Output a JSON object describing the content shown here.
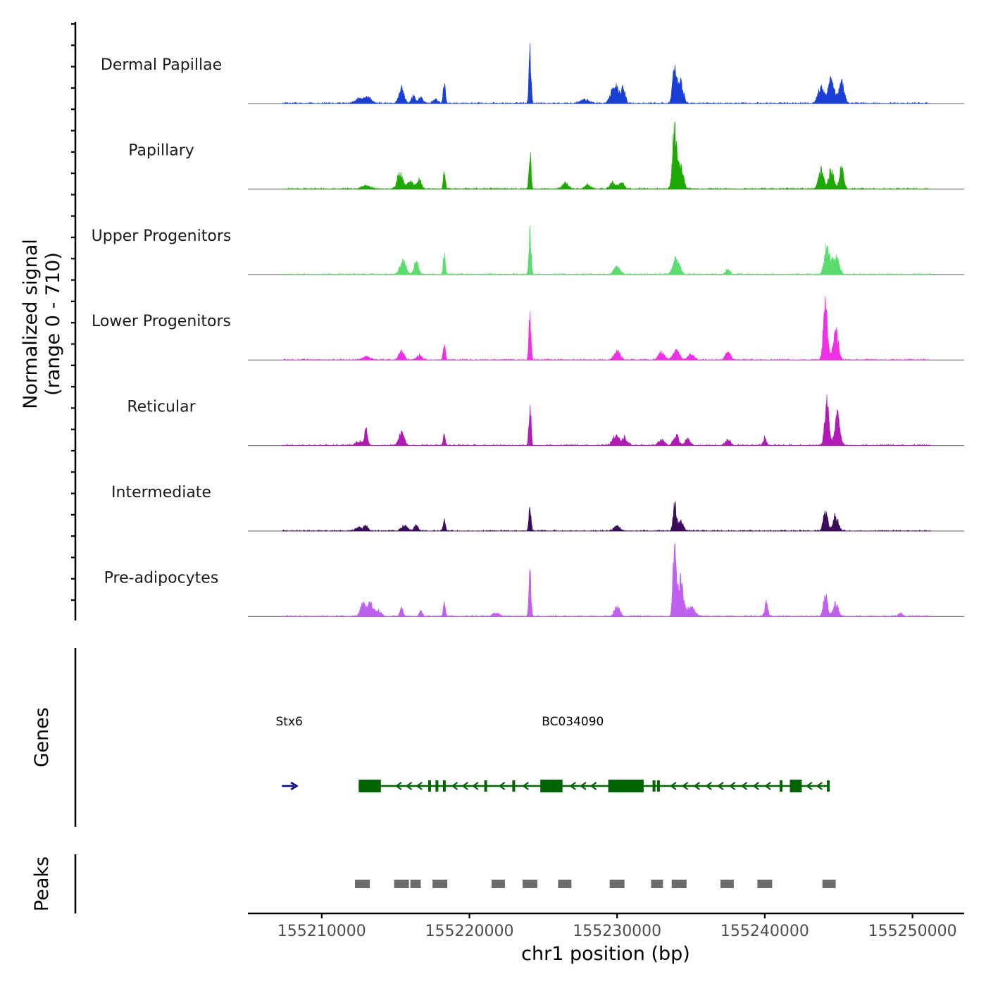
{
  "chart_data": {
    "type": "area",
    "title": "",
    "xlabel": "chr1 position (bp)",
    "ylabel": "Normalized signal",
    "ylabel_range": "(range 0 - 710)",
    "ylim": [
      0,
      710
    ],
    "xlim": [
      155205000,
      155253500
    ],
    "x_ticks": [
      155210000,
      155220000,
      155230000,
      155240000,
      155250000
    ],
    "x_tick_labels": [
      "155210000",
      "155220000",
      "155230000",
      "155240000",
      "155250000"
    ],
    "series": [
      {
        "name": "Dermal Papillae",
        "color": "#1a3fd6",
        "peaks": [
          [
            155212500,
            55,
            8
          ],
          [
            155213100,
            75,
            8
          ],
          [
            155215400,
            200,
            5
          ],
          [
            155216200,
            100,
            4
          ],
          [
            155216700,
            80,
            4
          ],
          [
            155217700,
            55,
            5
          ],
          [
            155218300,
            280,
            2
          ],
          [
            155224100,
            710,
            2
          ],
          [
            155227800,
            50,
            8
          ],
          [
            155229700,
            160,
            6
          ],
          [
            155230000,
            170,
            4
          ],
          [
            155230400,
            220,
            4
          ],
          [
            155233900,
            450,
            4
          ],
          [
            155234300,
            300,
            5
          ],
          [
            155243800,
            200,
            6
          ],
          [
            155244500,
            300,
            6
          ],
          [
            155245200,
            280,
            5
          ]
        ]
      },
      {
        "name": "Papillary",
        "color": "#1daa00",
        "peaks": [
          [
            155213000,
            45,
            8
          ],
          [
            155215300,
            230,
            5
          ],
          [
            155216000,
            100,
            6
          ],
          [
            155216600,
            120,
            4
          ],
          [
            155218300,
            230,
            2
          ],
          [
            155224100,
            470,
            2
          ],
          [
            155226500,
            70,
            6
          ],
          [
            155228000,
            50,
            6
          ],
          [
            155229700,
            90,
            5
          ],
          [
            155230300,
            90,
            5
          ],
          [
            155233900,
            780,
            4
          ],
          [
            155234300,
            300,
            5
          ],
          [
            155243800,
            250,
            5
          ],
          [
            155244500,
            250,
            5
          ],
          [
            155245200,
            280,
            4
          ]
        ]
      },
      {
        "name": "Upper Progenitors",
        "color": "#5adc6e",
        "peaks": [
          [
            155215500,
            170,
            6
          ],
          [
            155216400,
            190,
            4
          ],
          [
            155218300,
            270,
            2
          ],
          [
            155224100,
            620,
            2
          ],
          [
            155230000,
            110,
            6
          ],
          [
            155234000,
            210,
            6
          ],
          [
            155237500,
            60,
            4
          ],
          [
            155244200,
            370,
            5
          ],
          [
            155244800,
            250,
            6
          ]
        ]
      },
      {
        "name": "Lower Progenitors",
        "color": "#f030e6",
        "peaks": [
          [
            155213000,
            45,
            8
          ],
          [
            155215400,
            120,
            5
          ],
          [
            155216600,
            60,
            5
          ],
          [
            155218300,
            220,
            2
          ],
          [
            155224100,
            600,
            2
          ],
          [
            155230000,
            120,
            6
          ],
          [
            155233000,
            100,
            6
          ],
          [
            155234000,
            130,
            6
          ],
          [
            155235000,
            80,
            6
          ],
          [
            155237500,
            110,
            5
          ],
          [
            155244100,
            700,
            4
          ],
          [
            155244800,
            400,
            5
          ]
        ]
      },
      {
        "name": "Reticular",
        "color": "#b01ab5",
        "peaks": [
          [
            155212500,
            55,
            6
          ],
          [
            155213000,
            220,
            3
          ],
          [
            155215400,
            180,
            5
          ],
          [
            155218300,
            140,
            2
          ],
          [
            155224100,
            560,
            2
          ],
          [
            155229900,
            130,
            6
          ],
          [
            155230500,
            100,
            6
          ],
          [
            155233000,
            70,
            6
          ],
          [
            155234000,
            130,
            5
          ],
          [
            155234800,
            90,
            5
          ],
          [
            155237500,
            80,
            5
          ],
          [
            155240000,
            110,
            3
          ],
          [
            155244200,
            560,
            4
          ],
          [
            155244900,
            400,
            5
          ]
        ]
      },
      {
        "name": "Intermediate",
        "color": "#3a0c5a",
        "peaks": [
          [
            155212500,
            45,
            6
          ],
          [
            155213000,
            70,
            4
          ],
          [
            155215600,
            70,
            6
          ],
          [
            155216400,
            75,
            4
          ],
          [
            155218300,
            150,
            2
          ],
          [
            155224100,
            350,
            2
          ],
          [
            155230000,
            70,
            6
          ],
          [
            155233900,
            370,
            3
          ],
          [
            155234300,
            130,
            5
          ],
          [
            155244100,
            280,
            4
          ],
          [
            155244800,
            200,
            5
          ]
        ]
      },
      {
        "name": "Pre-adipocytes",
        "color": "#c060f0",
        "peaks": [
          [
            155212800,
            170,
            5
          ],
          [
            155213300,
            170,
            5
          ],
          [
            155213800,
            80,
            6
          ],
          [
            155215400,
            110,
            3
          ],
          [
            155216700,
            80,
            3
          ],
          [
            155218300,
            190,
            2
          ],
          [
            155221800,
            50,
            6
          ],
          [
            155224100,
            630,
            2
          ],
          [
            155230000,
            130,
            5
          ],
          [
            155233900,
            1050,
            3
          ],
          [
            155234300,
            500,
            5
          ],
          [
            155235000,
            120,
            8
          ],
          [
            155240100,
            190,
            3
          ],
          [
            155244100,
            280,
            4
          ],
          [
            155244800,
            170,
            5
          ],
          [
            155249200,
            40,
            4
          ]
        ]
      }
    ],
    "genes": {
      "title": "Genes",
      "labels": [
        {
          "name": "Stx6",
          "x": 155207800
        },
        {
          "name": "BC034090",
          "x": 155227000
        }
      ],
      "stx6_arrow": {
        "start": 155207300,
        "end": 155208300,
        "strand": "+",
        "color": "#00008b"
      },
      "bc034090": {
        "start": 155212500,
        "end": 155244300,
        "strand": "-",
        "color": "#006400",
        "exons": [
          [
            155212500,
            155214000
          ],
          [
            155224800,
            155226300
          ],
          [
            155229400,
            155231800
          ],
          [
            155241700,
            155242500
          ]
        ],
        "small_exons": [
          155217300,
          155217800,
          155218300,
          155221100,
          155223000,
          155232500,
          155232800,
          155241100,
          155244300
        ],
        "chevrons": [
          155215200,
          155215900,
          155216600,
          155219000,
          155219700,
          155220400,
          155222200,
          155223800,
          155227000,
          155227700,
          155228400,
          155233800,
          155234600,
          155235400,
          155236200,
          155237000,
          155237800,
          155238600,
          155239400,
          155240200,
          155243000,
          155243700
        ]
      }
    },
    "peaks_track": {
      "title": "Peaks",
      "color": "#6b6b6b",
      "regions": [
        [
          155212250,
          155213250
        ],
        [
          155214900,
          155215900
        ],
        [
          155216000,
          155216700
        ],
        [
          155217500,
          155218500
        ],
        [
          155221500,
          155222400
        ],
        [
          155223600,
          155224600
        ],
        [
          155226000,
          155226900
        ],
        [
          155229500,
          155230500
        ],
        [
          155232300,
          155233100
        ],
        [
          155233700,
          155234700
        ],
        [
          155237000,
          155237900
        ],
        [
          155239500,
          155240500
        ],
        [
          155243900,
          155244800
        ]
      ]
    }
  }
}
